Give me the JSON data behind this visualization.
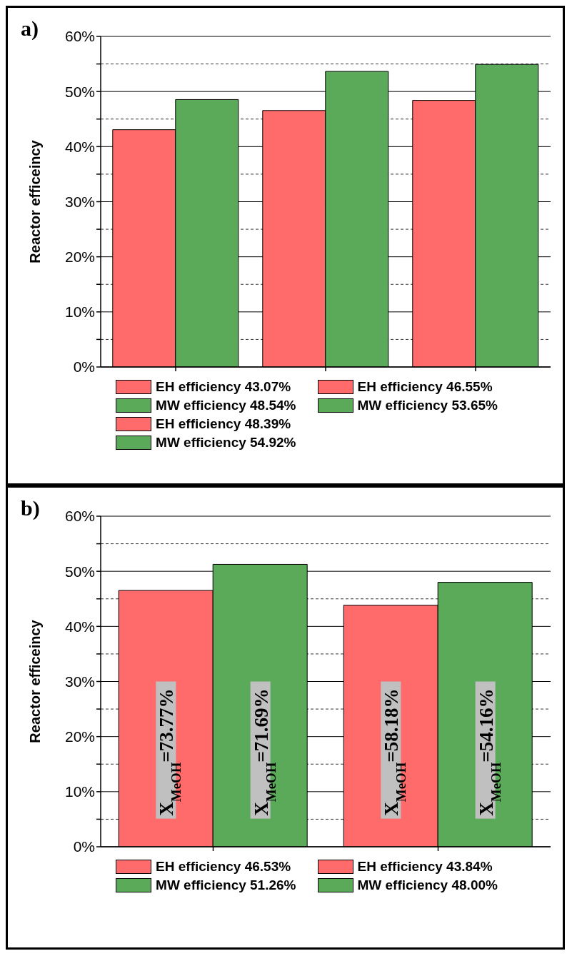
{
  "chart_data": [
    {
      "type": "bar",
      "title": "a)",
      "ylabel": "Reactor efficeincy",
      "categories": [
        null,
        null,
        null
      ],
      "series": [
        {
          "name": "EH efficiency 43.07%",
          "color": "#ff6b6b",
          "values": [
            43.07,
            null,
            null
          ]
        },
        {
          "name": "MW efficiency 48.54%",
          "color": "#5aaa5a",
          "values": [
            48.54,
            null,
            null
          ]
        },
        {
          "name": "EH efficiency 46.55%",
          "color": "#ff6b6b",
          "values": [
            null,
            46.55,
            null
          ]
        },
        {
          "name": "MW efficiency 53.65%",
          "color": "#5aaa5a",
          "values": [
            null,
            53.65,
            null
          ]
        },
        {
          "name": "EH efficiency 48.39%",
          "color": "#ff6b6b",
          "values": [
            null,
            null,
            48.39
          ]
        },
        {
          "name": "MW efficiency 54.92%",
          "color": "#5aaa5a",
          "values": [
            null,
            null,
            54.92
          ]
        }
      ],
      "ylim": [
        0,
        60
      ],
      "yticks": [
        {
          "value": 0,
          "label": "0%"
        },
        {
          "value": 5,
          "label": null
        },
        {
          "value": 10,
          "label": "10%"
        },
        {
          "value": 15,
          "label": null
        },
        {
          "value": 20,
          "label": "20%"
        },
        {
          "value": 25,
          "label": null
        },
        {
          "value": 30,
          "label": "30%"
        },
        {
          "value": 35,
          "label": null
        },
        {
          "value": 40,
          "label": "40%"
        },
        {
          "value": 45,
          "label": null
        },
        {
          "value": 50,
          "label": "50%"
        },
        {
          "value": 55,
          "label": null
        },
        {
          "value": 60,
          "label": "60%"
        }
      ],
      "grid": "y",
      "legend": "bottom"
    },
    {
      "type": "bar",
      "title": "b)",
      "ylabel": "Reactor efficeincy",
      "categories": [
        null,
        null
      ],
      "series": [
        {
          "name": "EH efficiency 46.53%",
          "color": "#ff6b6b",
          "values": [
            46.53,
            null
          ]
        },
        {
          "name": "MW efficiency 51.26%",
          "color": "#5aaa5a",
          "values": [
            51.26,
            null
          ]
        },
        {
          "name": "EH efficiency 43.84%",
          "color": "#ff6b6b",
          "values": [
            null,
            43.84
          ]
        },
        {
          "name": "MW efficiency 48.00%",
          "color": "#5aaa5a",
          "values": [
            null,
            48.0
          ]
        }
      ],
      "ylim": [
        0,
        60
      ],
      "yticks": [
        {
          "value": 0,
          "label": "0%"
        },
        {
          "value": 5,
          "label": null
        },
        {
          "value": 10,
          "label": "10%"
        },
        {
          "value": 15,
          "label": null
        },
        {
          "value": 20,
          "label": "20%"
        },
        {
          "value": 25,
          "label": null
        },
        {
          "value": 30,
          "label": "30%"
        },
        {
          "value": 35,
          "label": null
        },
        {
          "value": 40,
          "label": "40%"
        },
        {
          "value": 45,
          "label": null
        },
        {
          "value": 50,
          "label": "50%"
        },
        {
          "value": 55,
          "label": null
        },
        {
          "value": 60,
          "label": "60%"
        }
      ],
      "annotations": [
        "X$_{MeOH}$=73.77%",
        "X$_{MeOH}$=71.69%",
        "X$_{MeOH}$=58.18%",
        "X$_{MeOH}$=54.16%"
      ],
      "grid": "y",
      "legend": "bottom"
    }
  ]
}
